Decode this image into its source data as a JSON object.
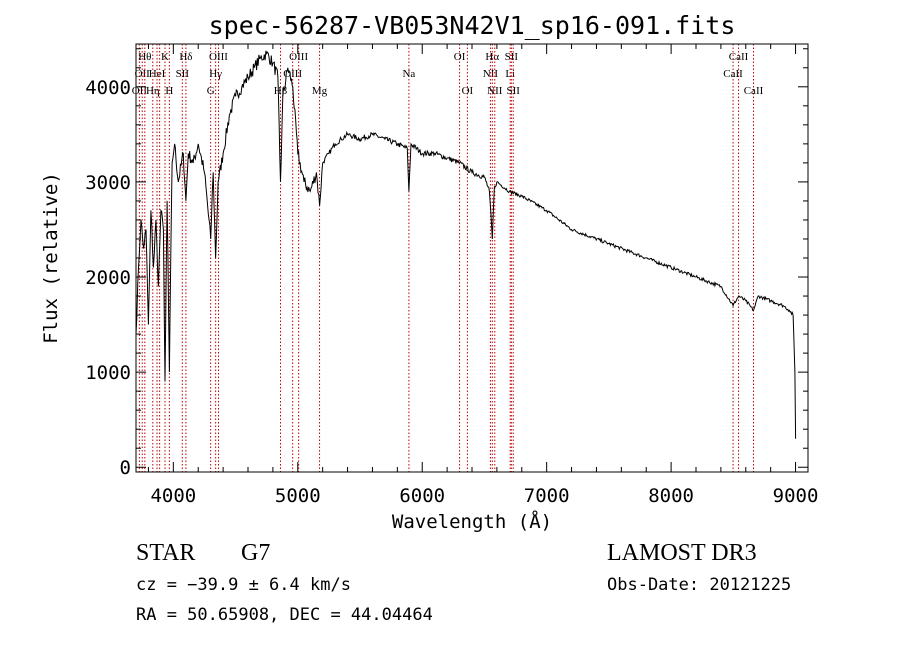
{
  "chart_data": {
    "type": "line",
    "title": "spec-56287-VB053N42V1_sp16-091.fits",
    "xlabel": "Wavelength (Å)",
    "ylabel": "Flux (relative)",
    "xlim": [
      3700,
      9100
    ],
    "ylim": [
      -50,
      4450
    ],
    "x_ticks": [
      4000,
      5000,
      6000,
      7000,
      8000,
      9000
    ],
    "y_ticks": [
      0,
      1000,
      2000,
      3000,
      4000
    ],
    "x_minor_step": 200,
    "y_minor_step": 200,
    "grid": false,
    "series": [
      {
        "name": "flux",
        "x": [
          3700,
          3720,
          3740,
          3760,
          3780,
          3800,
          3820,
          3840,
          3860,
          3880,
          3900,
          3920,
          3933,
          3950,
          3968,
          3990,
          4010,
          4040,
          4080,
          4101,
          4120,
          4160,
          4200,
          4250,
          4300,
          4320,
          4340,
          4360,
          4400,
          4450,
          4500,
          4550,
          4600,
          4650,
          4700,
          4750,
          4800,
          4840,
          4861,
          4880,
          4920,
          4960,
          5000,
          5050,
          5100,
          5150,
          5175,
          5200,
          5250,
          5300,
          5350,
          5400,
          5500,
          5600,
          5700,
          5800,
          5880,
          5893,
          5910,
          6000,
          6100,
          6200,
          6300,
          6400,
          6500,
          6540,
          6563,
          6580,
          6600,
          6700,
          6800,
          7000,
          7200,
          7500,
          7800,
          8000,
          8200,
          8400,
          8498,
          8542,
          8600,
          8662,
          8700,
          8800,
          8900,
          8950,
          8980,
          8995,
          9000
        ],
        "y": [
          1400,
          2100,
          2600,
          2300,
          2500,
          1500,
          2700,
          2100,
          2600,
          1900,
          2700,
          2500,
          900,
          2800,
          1000,
          3200,
          3400,
          3000,
          3300,
          2800,
          3300,
          3200,
          3400,
          3100,
          2400,
          3100,
          2200,
          3000,
          3300,
          3700,
          3900,
          4000,
          4100,
          4200,
          4300,
          4350,
          4250,
          4100,
          3000,
          3900,
          4200,
          4000,
          3300,
          3000,
          2900,
          3100,
          2750,
          3200,
          3300,
          3400,
          3450,
          3500,
          3450,
          3500,
          3450,
          3400,
          3350,
          2900,
          3400,
          3300,
          3300,
          3250,
          3200,
          3100,
          3050,
          2900,
          2400,
          2950,
          3000,
          2900,
          2850,
          2700,
          2500,
          2350,
          2200,
          2100,
          2000,
          1900,
          1700,
          1800,
          1750,
          1650,
          1800,
          1750,
          1700,
          1650,
          1600,
          1000,
          300
        ]
      }
    ],
    "line_markers": [
      {
        "wavelength": 3727,
        "label": "OII",
        "row": 3
      },
      {
        "wavelength": 3750,
        "label": "OII",
        "row": 2
      },
      {
        "wavelength": 3771,
        "label": "Hθ",
        "row": 1
      },
      {
        "wavelength": 3835,
        "label": "Hη",
        "row": 3
      },
      {
        "wavelength": 3869,
        "label": "HeI",
        "row": 2
      },
      {
        "wavelength": 3890,
        "label": "",
        "row": 0
      },
      {
        "wavelength": 3933,
        "label": "K",
        "row": 1
      },
      {
        "wavelength": 3968,
        "label": "H",
        "row": 3
      },
      {
        "wavelength": 4072,
        "label": "SII",
        "row": 2
      },
      {
        "wavelength": 4101,
        "label": "Hδ",
        "row": 1
      },
      {
        "wavelength": 4300,
        "label": "G",
        "row": 3
      },
      {
        "wavelength": 4340,
        "label": "Hγ",
        "row": 2
      },
      {
        "wavelength": 4363,
        "label": "OIII",
        "row": 1
      },
      {
        "wavelength": 4861,
        "label": "Hβ",
        "row": 3
      },
      {
        "wavelength": 4959,
        "label": "OIII",
        "row": 2
      },
      {
        "wavelength": 5007,
        "label": "OIII",
        "row": 1
      },
      {
        "wavelength": 5175,
        "label": "Mg",
        "row": 3
      },
      {
        "wavelength": 5893,
        "label": "Na",
        "row": 2
      },
      {
        "wavelength": 6300,
        "label": "OI",
        "row": 1
      },
      {
        "wavelength": 6363,
        "label": "OI",
        "row": 3
      },
      {
        "wavelength": 6548,
        "label": "NII",
        "row": 2
      },
      {
        "wavelength": 6563,
        "label": "Hα",
        "row": 1
      },
      {
        "wavelength": 6583,
        "label": "NII",
        "row": 3
      },
      {
        "wavelength": 6707,
        "label": "Li",
        "row": 2
      },
      {
        "wavelength": 6716,
        "label": "SII",
        "row": 1
      },
      {
        "wavelength": 6731,
        "label": "SII",
        "row": 3
      },
      {
        "wavelength": 8498,
        "label": "CaII",
        "row": 2
      },
      {
        "wavelength": 8542,
        "label": "CaII",
        "row": 1
      },
      {
        "wavelength": 8662,
        "label": "CaII",
        "row": 3
      }
    ],
    "colors": {
      "spectrum": "#000000",
      "marker": "#c00000",
      "axes": "#000000",
      "background": "#ffffff"
    }
  },
  "info": {
    "class": "STAR",
    "subclass": "G7",
    "survey": "LAMOST DR3",
    "cz": "cz = −39.9 ± 6.4 km/s",
    "obs_date": "Obs-Date: 20121225",
    "radec": "RA =  50.65908, DEC =  44.04464"
  }
}
